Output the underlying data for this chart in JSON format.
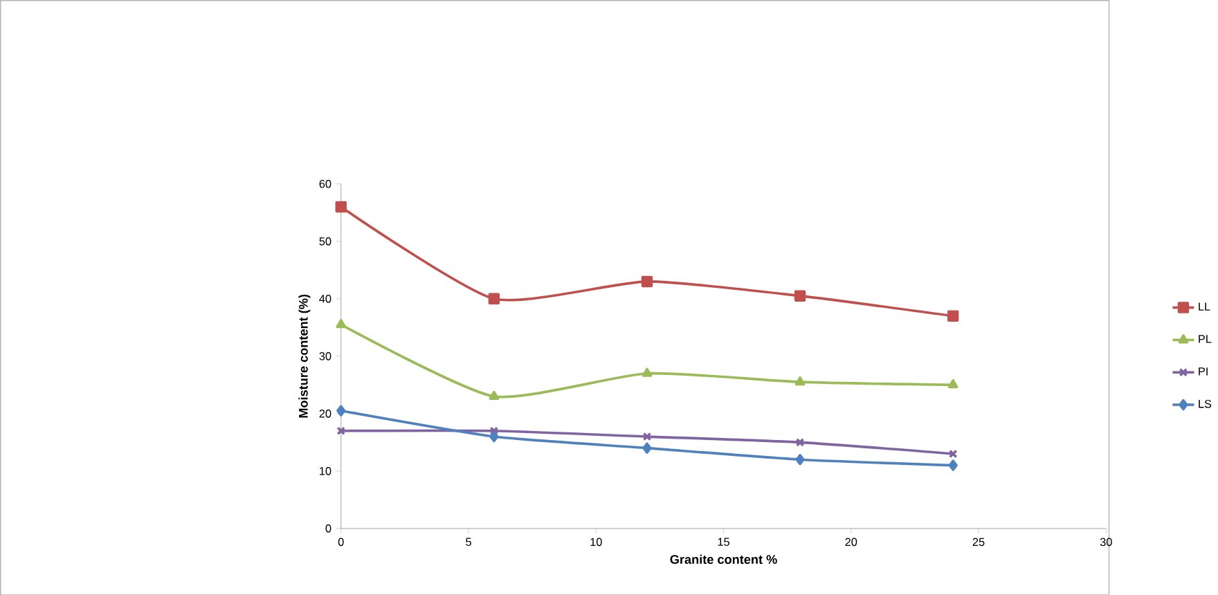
{
  "chart_data": {
    "type": "line",
    "xlabel": "Granite content %",
    "ylabel": "Moisture content (%)",
    "x": [
      0,
      6,
      12,
      18,
      24
    ],
    "series": [
      {
        "name": "LL",
        "color": "#c0504d",
        "marker": "square",
        "values": [
          56,
          40,
          43,
          40.5,
          37
        ]
      },
      {
        "name": "PL",
        "color": "#9bbb59",
        "marker": "triangle",
        "values": [
          35.5,
          23,
          27,
          25.5,
          25
        ]
      },
      {
        "name": "PI",
        "color": "#8064a2",
        "marker": "cross",
        "values": [
          17,
          17,
          16,
          15,
          13
        ]
      },
      {
        "name": "LS",
        "color": "#4f81bd",
        "marker": "diamond",
        "values": [
          20.5,
          16,
          14,
          12,
          11
        ]
      }
    ],
    "xlim": [
      0,
      30
    ],
    "xticks": [
      0,
      5,
      10,
      15,
      20,
      25,
      30
    ],
    "ylim": [
      0,
      60
    ],
    "yticks": [
      0,
      10,
      20,
      30,
      40,
      50,
      60
    ],
    "legend": "right",
    "grid": false,
    "line_style": "solid"
  }
}
